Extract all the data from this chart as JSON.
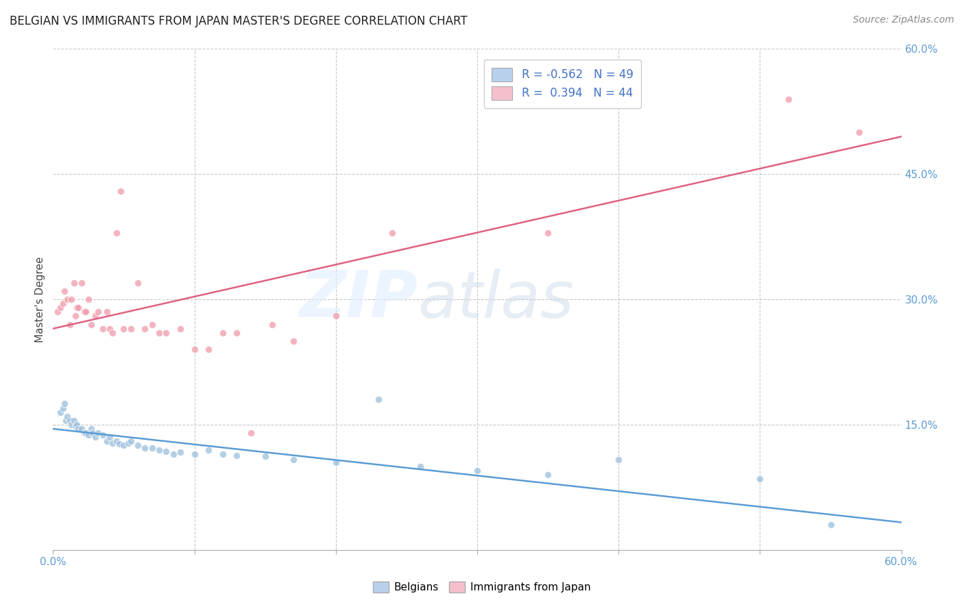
{
  "title": "BELGIAN VS IMMIGRANTS FROM JAPAN MASTER'S DEGREE CORRELATION CHART",
  "source": "Source: ZipAtlas.com",
  "ylabel": "Master's Degree",
  "xlim": [
    0.0,
    0.6
  ],
  "ylim": [
    0.0,
    0.6
  ],
  "x_ticks": [
    0.0,
    0.1,
    0.2,
    0.3,
    0.4,
    0.5,
    0.6
  ],
  "x_tick_labels": [
    "0.0%",
    "",
    "",
    "",
    "",
    "",
    "60.0%"
  ],
  "right_y_ticks": [
    0.15,
    0.3,
    0.45,
    0.6
  ],
  "right_y_labels": [
    "15.0%",
    "30.0%",
    "45.0%",
    "60.0%"
  ],
  "legend_r1": "R = -0.562   N = 49",
  "legend_r2": "R =  0.394   N = 44",
  "blue_patch_color": "#b8d0eb",
  "pink_patch_color": "#f5c0cc",
  "blue_line_color": "#5b9bd5",
  "pink_line_color": "#e06080",
  "blue_scatter_color": "#9bbfdc",
  "pink_scatter_color": "#f09aaa",
  "background_color": "#ffffff",
  "grid_color": "#c8c8c8",
  "title_color": "#222222",
  "right_axis_color": "#5b9bd5",
  "legend_text_color": "#4472c4",
  "blue_x": [
    0.005,
    0.007,
    0.008,
    0.009,
    0.01,
    0.012,
    0.013,
    0.015,
    0.016,
    0.017,
    0.018,
    0.02,
    0.022,
    0.023,
    0.025,
    0.027,
    0.028,
    0.03,
    0.032,
    0.035,
    0.038,
    0.04,
    0.042,
    0.045,
    0.047,
    0.05,
    0.053,
    0.055,
    0.06,
    0.065,
    0.07,
    0.075,
    0.08,
    0.085,
    0.09,
    0.1,
    0.11,
    0.12,
    0.13,
    0.15,
    0.17,
    0.2,
    0.23,
    0.26,
    0.3,
    0.35,
    0.4,
    0.5,
    0.55
  ],
  "blue_y": [
    0.165,
    0.17,
    0.175,
    0.155,
    0.16,
    0.155,
    0.15,
    0.155,
    0.148,
    0.15,
    0.145,
    0.145,
    0.14,
    0.14,
    0.138,
    0.145,
    0.14,
    0.135,
    0.14,
    0.138,
    0.13,
    0.135,
    0.128,
    0.13,
    0.127,
    0.125,
    0.128,
    0.13,
    0.125,
    0.122,
    0.122,
    0.12,
    0.118,
    0.115,
    0.117,
    0.115,
    0.12,
    0.115,
    0.113,
    0.112,
    0.108,
    0.105,
    0.18,
    0.1,
    0.095,
    0.09,
    0.108,
    0.085,
    0.03
  ],
  "pink_x": [
    0.003,
    0.005,
    0.007,
    0.008,
    0.01,
    0.012,
    0.013,
    0.015,
    0.016,
    0.017,
    0.018,
    0.02,
    0.022,
    0.023,
    0.025,
    0.027,
    0.03,
    0.032,
    0.035,
    0.038,
    0.04,
    0.042,
    0.045,
    0.048,
    0.05,
    0.055,
    0.06,
    0.065,
    0.07,
    0.075,
    0.08,
    0.09,
    0.1,
    0.11,
    0.12,
    0.13,
    0.14,
    0.155,
    0.17,
    0.2,
    0.24,
    0.35,
    0.52,
    0.57
  ],
  "pink_y": [
    0.285,
    0.29,
    0.295,
    0.31,
    0.3,
    0.27,
    0.3,
    0.32,
    0.28,
    0.29,
    0.29,
    0.32,
    0.285,
    0.285,
    0.3,
    0.27,
    0.28,
    0.285,
    0.265,
    0.285,
    0.265,
    0.26,
    0.38,
    0.43,
    0.265,
    0.265,
    0.32,
    0.265,
    0.27,
    0.26,
    0.26,
    0.265,
    0.24,
    0.24,
    0.26,
    0.26,
    0.14,
    0.27,
    0.25,
    0.28,
    0.38,
    0.38,
    0.54,
    0.5
  ],
  "blue_line_x": [
    0.0,
    0.6
  ],
  "blue_line_y": [
    0.145,
    0.033
  ],
  "pink_line_x": [
    0.0,
    0.6
  ],
  "pink_line_y": [
    0.265,
    0.495
  ]
}
